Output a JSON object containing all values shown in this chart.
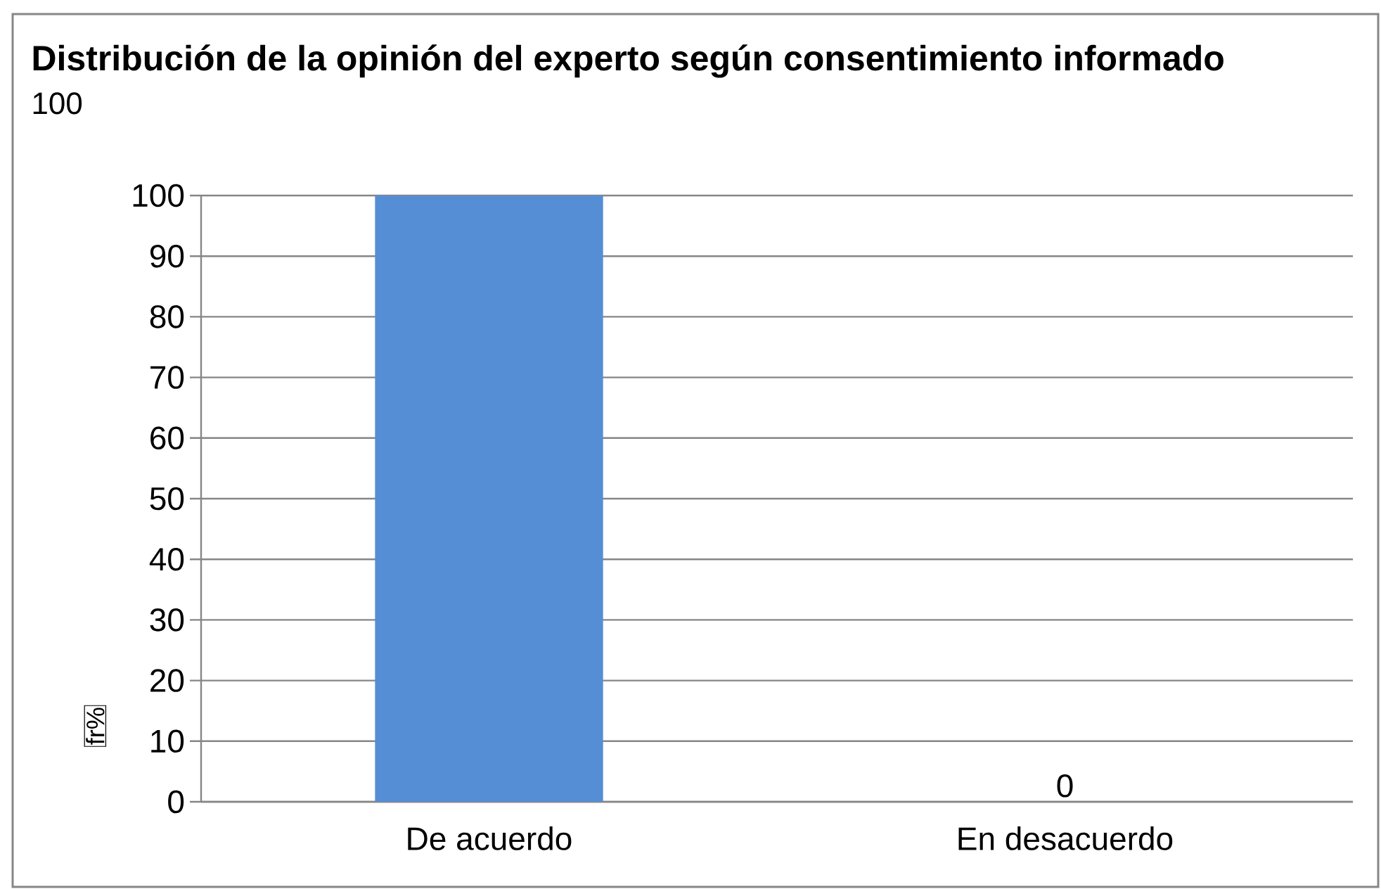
{
  "chart_data": {
    "type": "bar",
    "title": "Distribución de la opinión del experto según consentimiento informado",
    "subtitle": "100",
    "ylabel": "fr%",
    "categories": [
      "De acuerdo",
      "En desacuerdo"
    ],
    "values": [
      100,
      0
    ],
    "color": "#558ed5",
    "value_labels": [
      null,
      "0"
    ],
    "ylim": [
      0,
      100
    ],
    "yticks": [
      0,
      10,
      20,
      30,
      40,
      50,
      60,
      70,
      80,
      90,
      100
    ],
    "grid": "y"
  }
}
